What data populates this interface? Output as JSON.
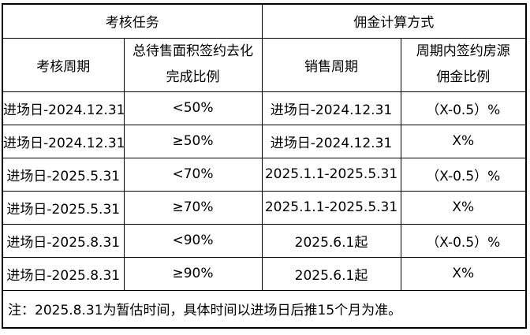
{
  "page": {
    "background_color": "#ffffff",
    "border_color": "#000000",
    "text_color": "#000000"
  },
  "table": {
    "header_groups": {
      "assessment": "考核任务",
      "commission": "佣金计算方式"
    },
    "subheaders": {
      "assessment_period": "考核周期",
      "completion_ratio_line1": "总待售面积签约去化",
      "completion_ratio_line2": "完成比例",
      "sales_period": "销售周期",
      "commission_rate_line1": "周期内签约房源",
      "commission_rate_line2": "佣金比例"
    },
    "rows": [
      [
        "进场日-2024.12.31",
        "<50%",
        "进场日-2024.12.31",
        "（X-0.5）%"
      ],
      [
        "进场日-2024.12.31",
        "≥50%",
        "进场日-2024.12.31",
        "X%"
      ],
      [
        "进场日-2025.5.31",
        "<70%",
        "2025.1.1-2025.5.31",
        "（X-0.5）%"
      ],
      [
        "进场日-2025.5.31",
        "≥70%",
        "2025.1.1-2025.5.31",
        "X%"
      ],
      [
        "进场日-2025.8.31",
        "<90%",
        "2025.6.1起",
        "（X-0.5）%"
      ],
      [
        "进场日-2025.8.31",
        "≥90%",
        "2025.6.1起",
        "X%"
      ]
    ],
    "footnote": "注：2025.8.31为暂估时间，具体时间以进场日后推15个月为准。"
  }
}
